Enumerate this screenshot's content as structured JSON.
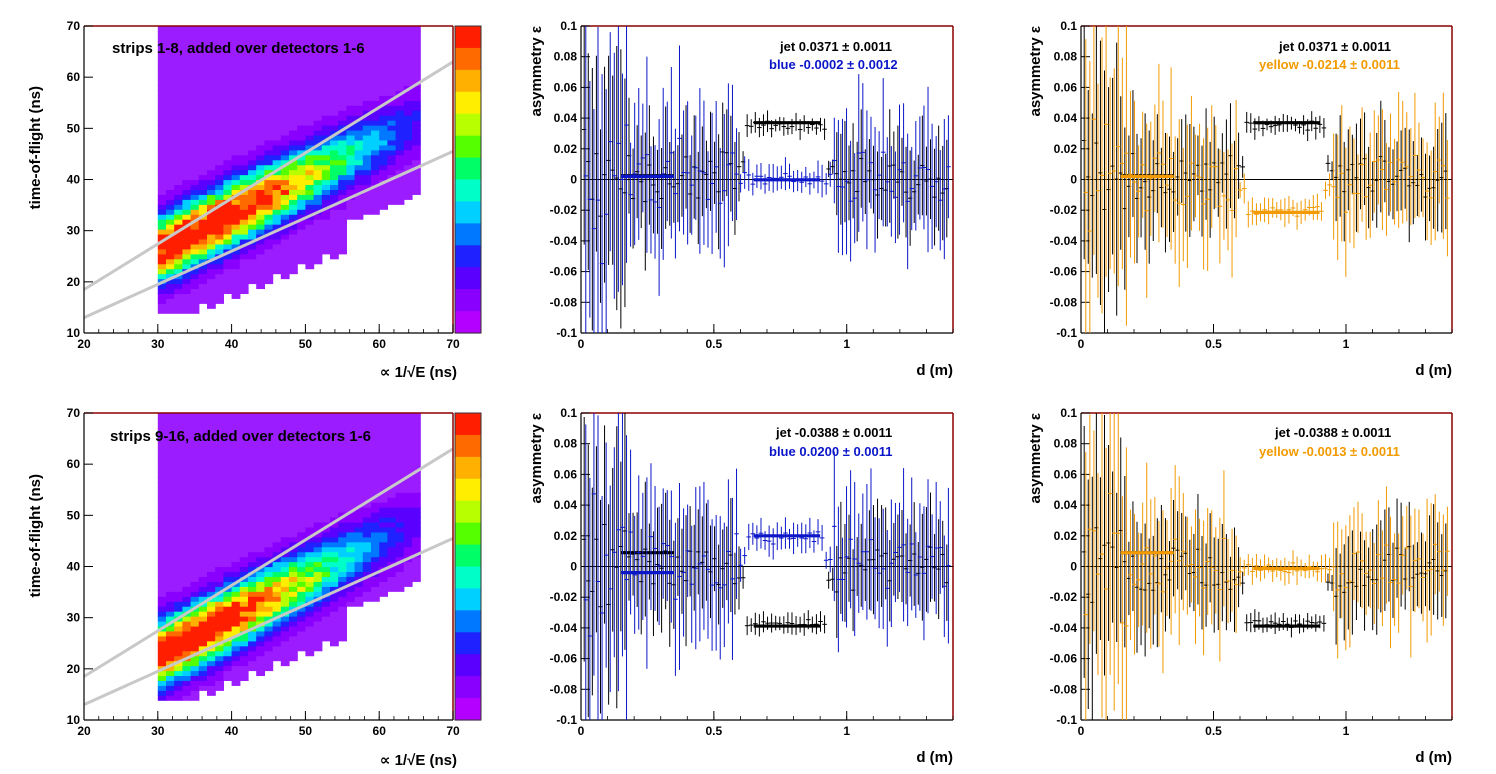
{
  "figure": {
    "colorbar": [
      "#ff1f00",
      "#ff6a00",
      "#ffb000",
      "#ffee00",
      "#b8ff00",
      "#55ff00",
      "#00ff66",
      "#00ffc8",
      "#00d0ff",
      "#0078ff",
      "#1f22ff",
      "#5a00ff",
      "#8a00ff",
      "#b400ff"
    ],
    "series_colors": {
      "jet": "#000000",
      "blue": "#0b16c8",
      "yellow": "#f29a00"
    }
  },
  "chart_data": [
    {
      "id": "tof-top",
      "type": "heatmap",
      "title": "strips 1-8, added over detectors 1-6",
      "xlabel": "∝ 1/√E (ns)",
      "ylabel": "time-of-flight (ns)",
      "xlim": [
        20,
        70
      ],
      "ylim": [
        10,
        70
      ],
      "xticks": [
        20,
        30,
        40,
        50,
        60,
        70
      ],
      "yticks": [
        10,
        20,
        30,
        40,
        50,
        60,
        70
      ],
      "band": {
        "slope": 0.72,
        "intercept": 4.5,
        "peak_x": 36,
        "peak_y": 28
      },
      "cut_lines": [
        {
          "x1": 20,
          "y1": 18.5,
          "x2": 70,
          "y2": 63
        },
        {
          "x1": 20,
          "y1": 13,
          "x2": 70,
          "y2": 45.5
        }
      ]
    },
    {
      "id": "asym-top-blue",
      "type": "scatter",
      "xlabel": "d (m)",
      "ylabel": "asymmetry ε",
      "xlim": [
        0,
        1.4
      ],
      "ylim": [
        -0.1,
        0.1
      ],
      "xticks": [
        0,
        0.5,
        1
      ],
      "yticks": [
        -0.1,
        -0.08,
        -0.06,
        -0.04,
        -0.02,
        0,
        0.02,
        0.04,
        0.06,
        0.08,
        0.1
      ],
      "series": [
        {
          "name": "jet",
          "label": "jet  0.0371 ± 0.0011",
          "color": "#000000",
          "fit": [
            {
              "x1": 0.65,
              "x2": 0.9,
              "y": 0.037
            },
            {
              "x1": 0.15,
              "x2": 0.35,
              "y": 0.0025
            }
          ],
          "signal": 0.037,
          "spread": 0.035
        },
        {
          "name": "blue",
          "label": "blue -0.0002 ± 0.0012",
          "color": "#0b16c8",
          "fit": [
            {
              "x1": 0.15,
              "x2": 0.35,
              "y": 0.002
            },
            {
              "x1": 0.65,
              "x2": 0.9,
              "y": -0.0002
            }
          ],
          "signal": -0.0002,
          "spread": 0.05
        }
      ]
    },
    {
      "id": "asym-top-yellow",
      "type": "scatter",
      "xlabel": "d (m)",
      "ylabel": "asymmetry ε",
      "xlim": [
        0,
        1.4
      ],
      "ylim": [
        -0.1,
        0.1
      ],
      "xticks": [
        0,
        0.5,
        1
      ],
      "yticks": [
        -0.1,
        -0.08,
        -0.06,
        -0.04,
        -0.02,
        0,
        0.02,
        0.04,
        0.06,
        0.08,
        0.1
      ],
      "series": [
        {
          "name": "jet",
          "label": "jet  0.0371 ± 0.0011",
          "color": "#000000",
          "fit": [
            {
              "x1": 0.65,
              "x2": 0.9,
              "y": 0.037
            },
            {
              "x1": 0.15,
              "x2": 0.35,
              "y": 0.0025
            }
          ],
          "signal": 0.037,
          "spread": 0.035
        },
        {
          "name": "yellow",
          "label": "yellow -0.0214 ± 0.0011",
          "color": "#f29a00",
          "fit": [
            {
              "x1": 0.15,
              "x2": 0.35,
              "y": 0.002
            },
            {
              "x1": 0.65,
              "x2": 0.9,
              "y": -0.0214
            }
          ],
          "signal": -0.0214,
          "spread": 0.045
        }
      ]
    },
    {
      "id": "tof-bottom",
      "type": "heatmap",
      "title": "strips 9-16, added over detectors 1-6",
      "xlabel": "∝ 1/√E (ns)",
      "ylabel": "time-of-flight (ns)",
      "xlim": [
        20,
        70
      ],
      "ylim": [
        10,
        70
      ],
      "xticks": [
        20,
        30,
        40,
        50,
        60,
        70
      ],
      "yticks": [
        10,
        20,
        30,
        40,
        50,
        60,
        70
      ],
      "band": {
        "slope": 0.74,
        "intercept": 0.5,
        "peak_x": 34,
        "peak_y": 26
      },
      "cut_lines": [
        {
          "x1": 20,
          "y1": 18.5,
          "x2": 70,
          "y2": 63
        },
        {
          "x1": 20,
          "y1": 13,
          "x2": 70,
          "y2": 45.5
        }
      ]
    },
    {
      "id": "asym-bottom-blue",
      "type": "scatter",
      "xlabel": "d (m)",
      "ylabel": "asymmetry ε",
      "xlim": [
        0,
        1.4
      ],
      "ylim": [
        -0.1,
        0.1
      ],
      "xticks": [
        0,
        0.5,
        1
      ],
      "yticks": [
        -0.1,
        -0.08,
        -0.06,
        -0.04,
        -0.02,
        0,
        0.02,
        0.04,
        0.06,
        0.08,
        0.1
      ],
      "series": [
        {
          "name": "jet",
          "label": "jet -0.0388 ± 0.0011",
          "color": "#000000",
          "fit": [
            {
              "x1": 0.65,
              "x2": 0.9,
              "y": -0.0388
            },
            {
              "x1": 0.15,
              "x2": 0.35,
              "y": 0.009
            }
          ],
          "signal": -0.0388,
          "spread": 0.035
        },
        {
          "name": "blue",
          "label": "blue  0.0200 ± 0.0011",
          "color": "#0b16c8",
          "fit": [
            {
              "x1": 0.15,
              "x2": 0.35,
              "y": -0.004
            },
            {
              "x1": 0.65,
              "x2": 0.9,
              "y": 0.02
            }
          ],
          "signal": 0.02,
          "spread": 0.05
        }
      ]
    },
    {
      "id": "asym-bottom-yellow",
      "type": "scatter",
      "xlabel": "d (m)",
      "ylabel": "asymmetry ε",
      "xlim": [
        0,
        1.4
      ],
      "ylim": [
        -0.1,
        0.1
      ],
      "xticks": [
        0,
        0.5,
        1
      ],
      "yticks": [
        -0.1,
        -0.08,
        -0.06,
        -0.04,
        -0.02,
        0,
        0.02,
        0.04,
        0.06,
        0.08,
        0.1
      ],
      "series": [
        {
          "name": "jet",
          "label": "jet -0.0388 ± 0.0011",
          "color": "#000000",
          "fit": [
            {
              "x1": 0.65,
              "x2": 0.9,
              "y": -0.0388
            },
            {
              "x1": 0.15,
              "x2": 0.35,
              "y": 0.009
            }
          ],
          "signal": -0.0388,
          "spread": 0.035
        },
        {
          "name": "yellow",
          "label": "yellow -0.0013 ± 0.0011",
          "color": "#f29a00",
          "fit": [
            {
              "x1": 0.15,
              "x2": 0.35,
              "y": 0.009
            },
            {
              "x1": 0.65,
              "x2": 0.9,
              "y": -0.0013
            }
          ],
          "signal": -0.0013,
          "spread": 0.045
        }
      ]
    }
  ]
}
